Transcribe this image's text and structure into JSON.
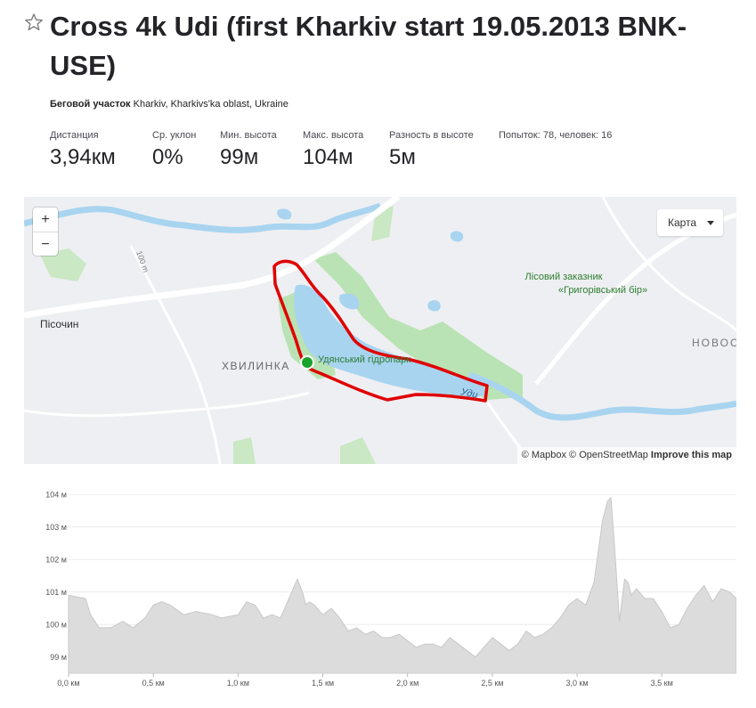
{
  "segment": {
    "title": "Cross 4k Udi (first Kharkiv start 19.05.2013 BNK-USE)",
    "location_label": "Беговой участок",
    "location_value": "Kharkiv, Kharkivs'ka oblast, Ukraine"
  },
  "stats": [
    {
      "label": "Дистанция",
      "value": "3,94км"
    },
    {
      "label": "Ср. уклон",
      "value": "0%"
    },
    {
      "label": "Мин. высота",
      "value": "99м"
    },
    {
      "label": "Макс. высота",
      "value": "104м"
    },
    {
      "label": "Разность в высоте",
      "value": "5м"
    },
    {
      "label": "Попыток: 78, человек: 16",
      "value": ""
    }
  ],
  "map": {
    "zoom_in": "+",
    "zoom_out": "−",
    "type_label": "Карта",
    "labels": {
      "pisochyn": "Пісочин",
      "khvylynka": "ХВИЛИНКА",
      "park": "Удянський гідропарк",
      "reserve_line1": "Лісовий заказник",
      "reserve_line2": "«Григорівський бір»",
      "udy": "Уди",
      "novo": "НОВОС",
      "contour": "100 m"
    },
    "attribution": {
      "mapbox": "© Mapbox",
      "osm": "© OpenStreetMap",
      "improve": "Improve this map"
    },
    "colors": {
      "route": "#e00000",
      "water": "#a8d4f0",
      "park": "#b9e3b4",
      "start": "#1aa32a"
    }
  },
  "chart_data": {
    "type": "area",
    "title": "",
    "xlabel": "",
    "ylabel": "",
    "xlim": [
      0,
      3.94
    ],
    "ylim": [
      98.5,
      104.2
    ],
    "x_ticks": [
      0,
      0.5,
      1.0,
      1.5,
      2.0,
      2.5,
      3.0,
      3.5
    ],
    "x_tick_labels": [
      "0,0 км",
      "0,5 км",
      "1,0 км",
      "1,5 км",
      "2,0 км",
      "2,5 км",
      "3,0 км",
      "3,5 км"
    ],
    "y_ticks": [
      99,
      100,
      101,
      102,
      103,
      104
    ],
    "y_tick_labels": [
      "99 м",
      "100 м",
      "101 м",
      "102 м",
      "103 м",
      "104 м"
    ],
    "x": [
      0.0,
      0.1,
      0.13,
      0.18,
      0.25,
      0.32,
      0.38,
      0.45,
      0.5,
      0.55,
      0.6,
      0.68,
      0.75,
      0.85,
      0.9,
      1.0,
      1.05,
      1.1,
      1.15,
      1.2,
      1.25,
      1.3,
      1.35,
      1.38,
      1.4,
      1.42,
      1.45,
      1.5,
      1.55,
      1.6,
      1.65,
      1.7,
      1.75,
      1.8,
      1.85,
      1.9,
      1.95,
      2.0,
      2.05,
      2.1,
      2.15,
      2.2,
      2.25,
      2.3,
      2.35,
      2.4,
      2.45,
      2.5,
      2.55,
      2.6,
      2.65,
      2.7,
      2.75,
      2.8,
      2.85,
      2.9,
      2.95,
      3.0,
      3.05,
      3.1,
      3.15,
      3.18,
      3.2,
      3.22,
      3.25,
      3.28,
      3.3,
      3.32,
      3.35,
      3.4,
      3.45,
      3.5,
      3.55,
      3.6,
      3.65,
      3.7,
      3.75,
      3.8,
      3.85,
      3.9,
      3.94
    ],
    "values": [
      100.9,
      100.8,
      100.3,
      99.9,
      99.9,
      100.1,
      99.9,
      100.2,
      100.6,
      100.7,
      100.6,
      100.3,
      100.4,
      100.3,
      100.2,
      100.3,
      100.7,
      100.6,
      100.2,
      100.3,
      100.2,
      100.8,
      101.4,
      101.0,
      100.6,
      100.7,
      100.6,
      100.3,
      100.5,
      100.2,
      99.8,
      99.9,
      99.7,
      99.8,
      99.6,
      99.6,
      99.7,
      99.5,
      99.3,
      99.4,
      99.4,
      99.3,
      99.6,
      99.4,
      99.2,
      99.0,
      99.3,
      99.6,
      99.4,
      99.2,
      99.4,
      99.8,
      99.6,
      99.7,
      99.9,
      100.2,
      100.6,
      100.8,
      100.6,
      101.3,
      103.2,
      103.8,
      103.9,
      102.5,
      100.1,
      101.4,
      101.3,
      100.9,
      101.1,
      100.8,
      100.8,
      100.4,
      99.9,
      100.0,
      100.5,
      100.9,
      101.2,
      100.7,
      101.1,
      101.0,
      100.8
    ]
  }
}
